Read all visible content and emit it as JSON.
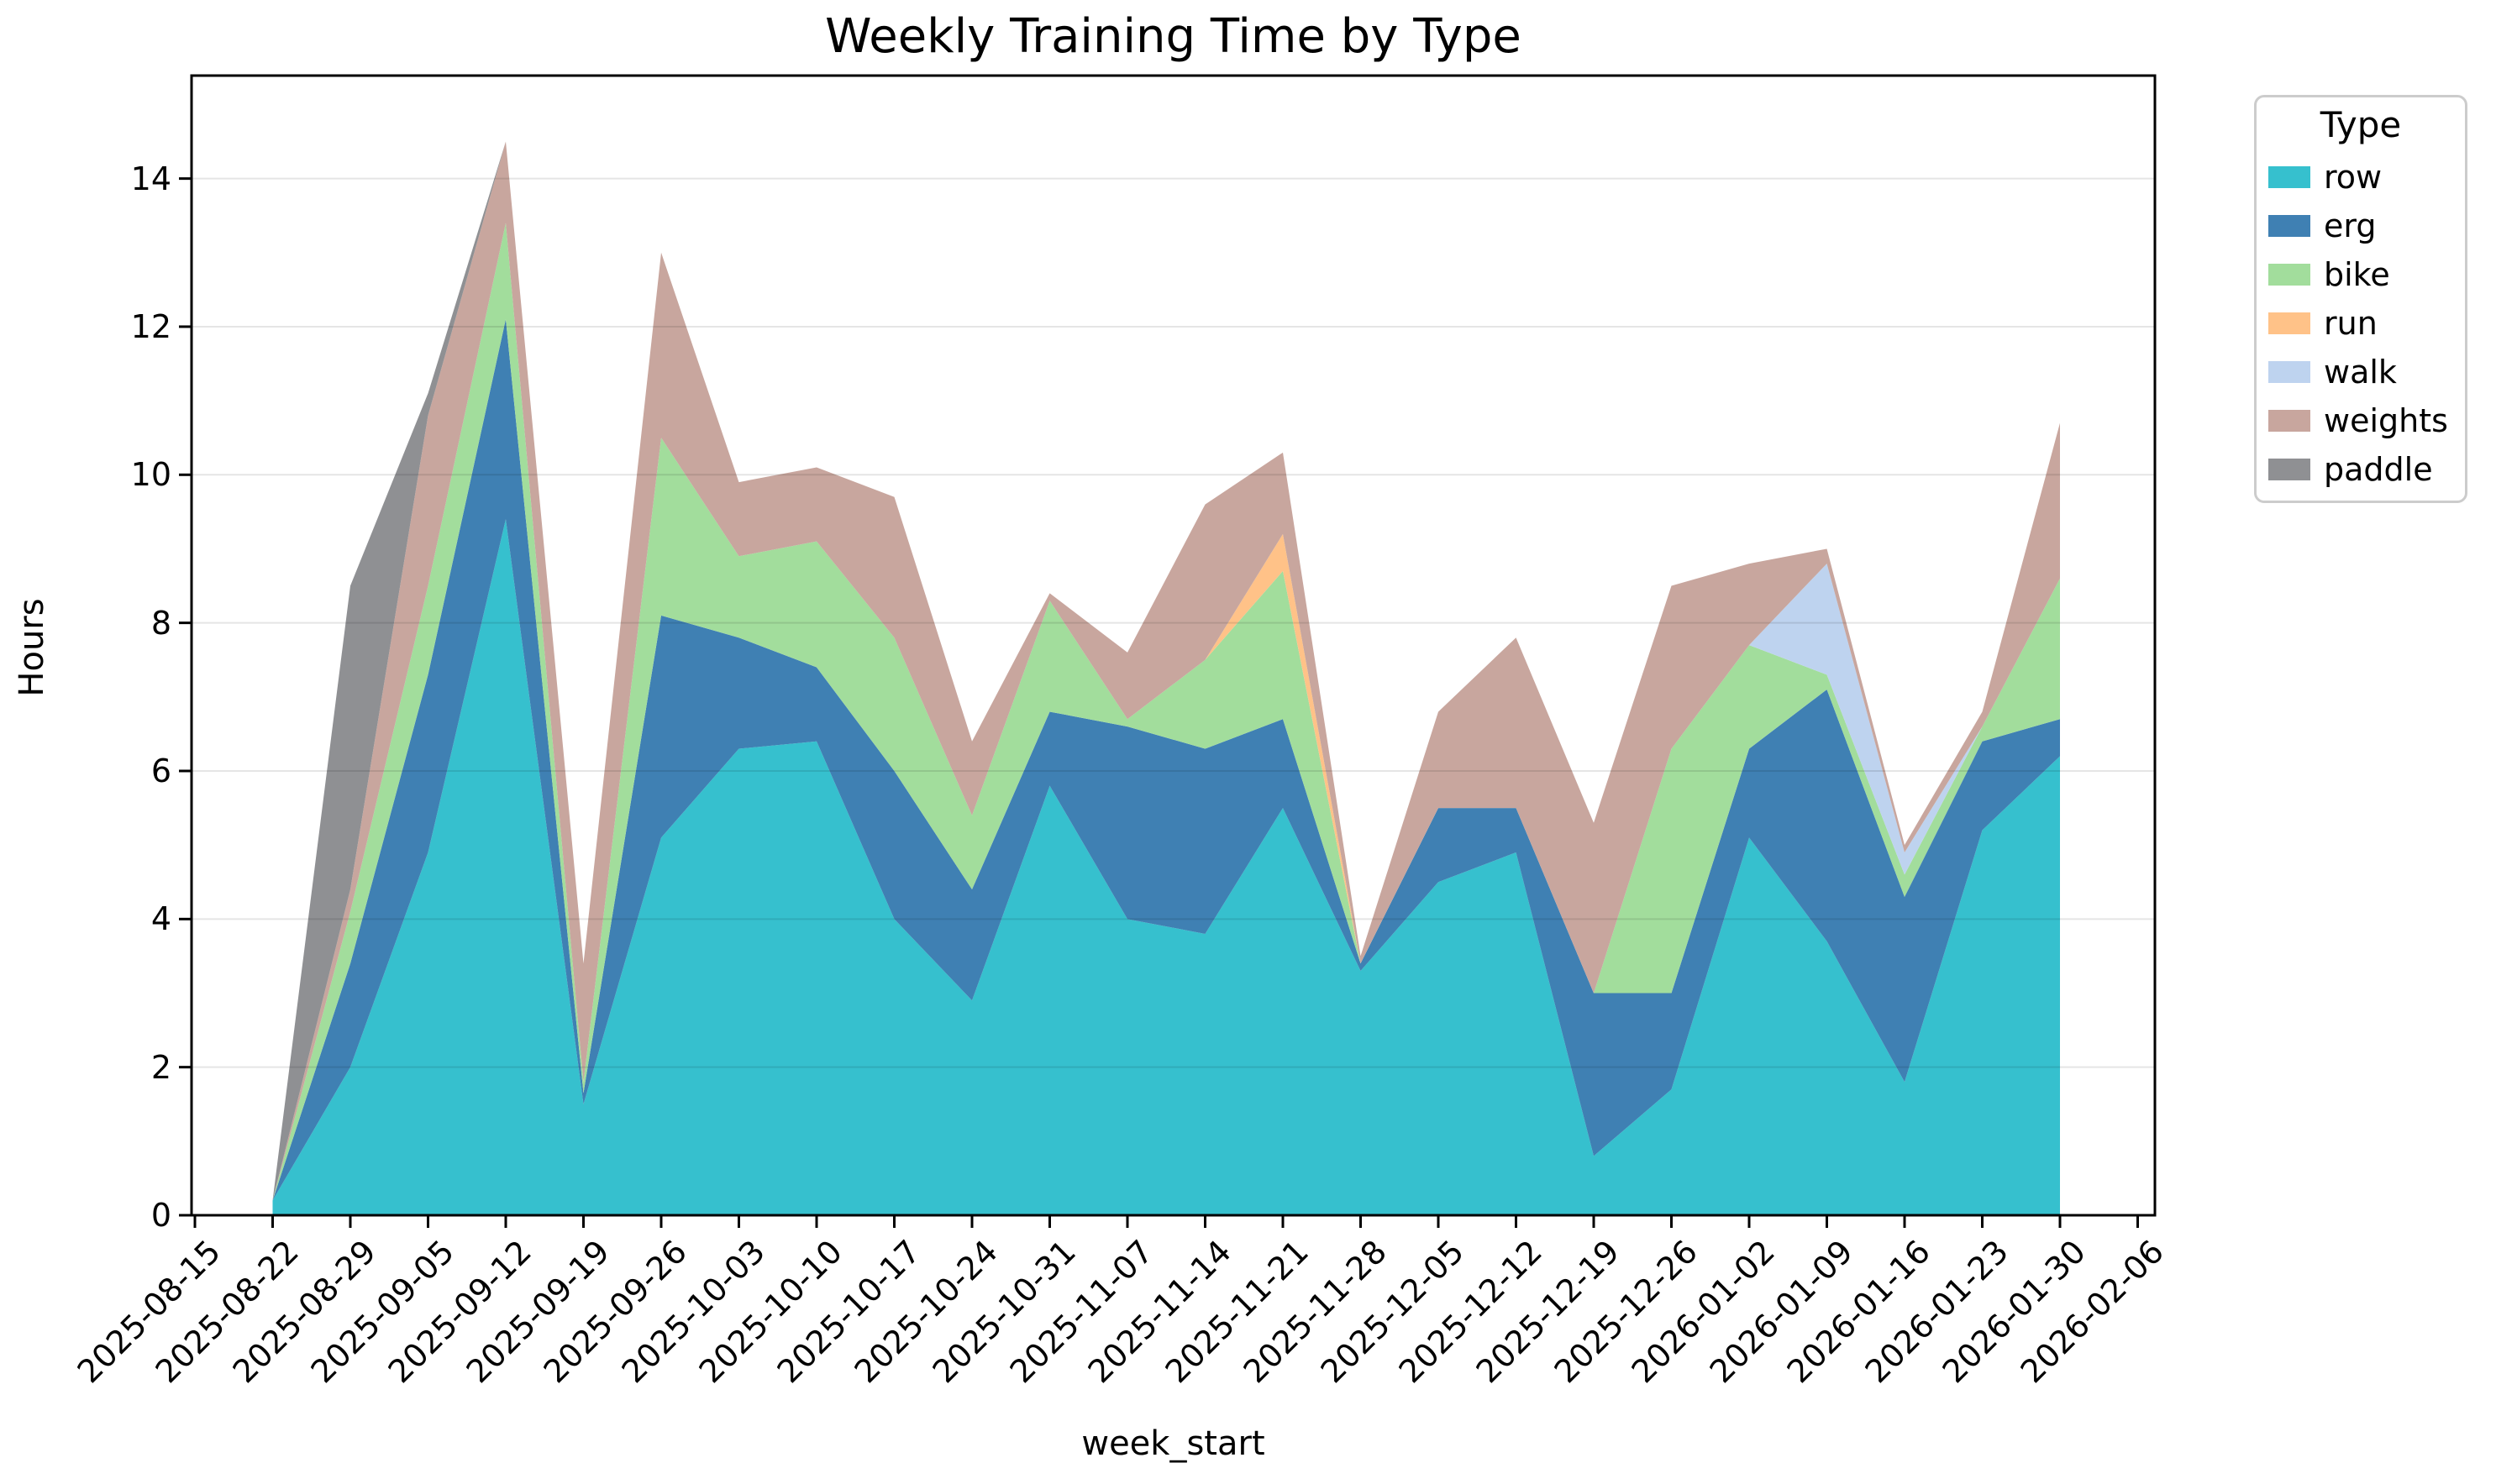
{
  "title": "Weekly Training Time by Type",
  "x_axis": {
    "label": "week_start",
    "tick_labels": [
      "2025-08-15",
      "2025-08-22",
      "2025-08-29",
      "2025-09-05",
      "2025-09-12",
      "2025-09-19",
      "2025-09-26",
      "2025-10-03",
      "2025-10-10",
      "2025-10-17",
      "2025-10-24",
      "2025-10-31",
      "2025-11-07",
      "2025-11-14",
      "2025-11-21",
      "2025-11-28",
      "2025-12-05",
      "2025-12-12",
      "2025-12-19",
      "2025-12-26",
      "2026-01-02",
      "2026-01-09",
      "2026-01-16",
      "2026-01-23",
      "2026-01-30",
      "2026-02-06"
    ]
  },
  "y_axis": {
    "label": "Hours",
    "tick_labels": [
      "0",
      "2",
      "4",
      "6",
      "8",
      "10",
      "12",
      "14"
    ]
  },
  "legend": {
    "title": "Type",
    "entries": [
      {
        "label": "row",
        "color": "#36c0ce"
      },
      {
        "label": "erg",
        "color": "#3f80b3"
      },
      {
        "label": "bike",
        "color": "#a2dd9c"
      },
      {
        "label": "run",
        "color": "#ffc288"
      },
      {
        "label": "walk",
        "color": "#bed3ef"
      },
      {
        "label": "weights",
        "color": "#c8a69e"
      },
      {
        "label": "paddle",
        "color": "#8f9093"
      }
    ]
  },
  "chart_data": {
    "type": "area",
    "stacked": true,
    "title": "Weekly Training Time by Type",
    "xlabel": "week_start",
    "ylabel": "Hours",
    "ylim": [
      0,
      15.4
    ],
    "grid": "horizontal",
    "legend_position": "outside upper right",
    "x": [
      "2025-08-22",
      "2025-08-29",
      "2025-09-05",
      "2025-09-12",
      "2025-09-19",
      "2025-09-26",
      "2025-10-03",
      "2025-10-10",
      "2025-10-17",
      "2025-10-24",
      "2025-10-31",
      "2025-11-07",
      "2025-11-14",
      "2025-11-21",
      "2025-11-28",
      "2025-12-05",
      "2025-12-12",
      "2025-12-19",
      "2025-12-26",
      "2026-01-02",
      "2026-01-09",
      "2026-01-16",
      "2026-01-23",
      "2026-01-30"
    ],
    "series": [
      {
        "name": "row",
        "color": "#36c0ce",
        "values": [
          0.2,
          2.0,
          4.9,
          9.4,
          1.5,
          5.1,
          6.3,
          6.4,
          4.0,
          2.9,
          5.8,
          4.0,
          3.8,
          5.5,
          3.3,
          4.5,
          4.9,
          0.8,
          1.7,
          5.1,
          3.7,
          1.8,
          5.2,
          6.2
        ]
      },
      {
        "name": "erg",
        "color": "#3f80b3",
        "values": [
          0,
          1.4,
          2.4,
          2.7,
          0.15,
          3.0,
          1.5,
          1.0,
          2.0,
          1.5,
          1.0,
          2.6,
          2.5,
          1.2,
          0.1,
          1.0,
          0.6,
          2.2,
          1.3,
          1.2,
          3.4,
          2.5,
          1.2,
          0.5
        ]
      },
      {
        "name": "bike",
        "color": "#a2dd9c",
        "values": [
          0,
          0.7,
          1.2,
          1.3,
          0.15,
          2.4,
          1.1,
          1.7,
          1.8,
          1.0,
          1.5,
          0.1,
          1.2,
          2.0,
          0,
          0,
          0,
          0,
          3.3,
          1.4,
          0.2,
          0.3,
          0.2,
          1.9
        ]
      },
      {
        "name": "run",
        "color": "#ffc288",
        "values": [
          0,
          0,
          0,
          0,
          0,
          0,
          0,
          0,
          0,
          0,
          0,
          0,
          0,
          0.5,
          0,
          0,
          0,
          0,
          0,
          0,
          0,
          0,
          0,
          0
        ]
      },
      {
        "name": "walk",
        "color": "#bed3ef",
        "values": [
          0,
          0,
          0,
          0,
          0,
          0,
          0,
          0,
          0,
          0,
          0,
          0,
          0,
          0,
          0,
          0,
          0,
          0,
          0,
          0,
          1.5,
          0.3,
          0,
          0
        ]
      },
      {
        "name": "weights",
        "color": "#c8a69e",
        "values": [
          0,
          0.3,
          2.3,
          1.1,
          1.6,
          2.5,
          1.0,
          1.0,
          1.9,
          1.0,
          0.1,
          0.9,
          2.1,
          1.1,
          0.1,
          1.3,
          2.3,
          2.3,
          2.2,
          1.1,
          0.2,
          0.1,
          0.2,
          2.1
        ]
      },
      {
        "name": "paddle",
        "color": "#8f9093",
        "values": [
          0,
          4.1,
          0.3,
          0,
          0,
          0,
          0,
          0,
          0,
          0,
          0,
          0,
          0,
          0,
          0,
          0,
          0,
          0,
          0,
          0,
          0,
          0,
          0,
          0
        ]
      }
    ]
  }
}
